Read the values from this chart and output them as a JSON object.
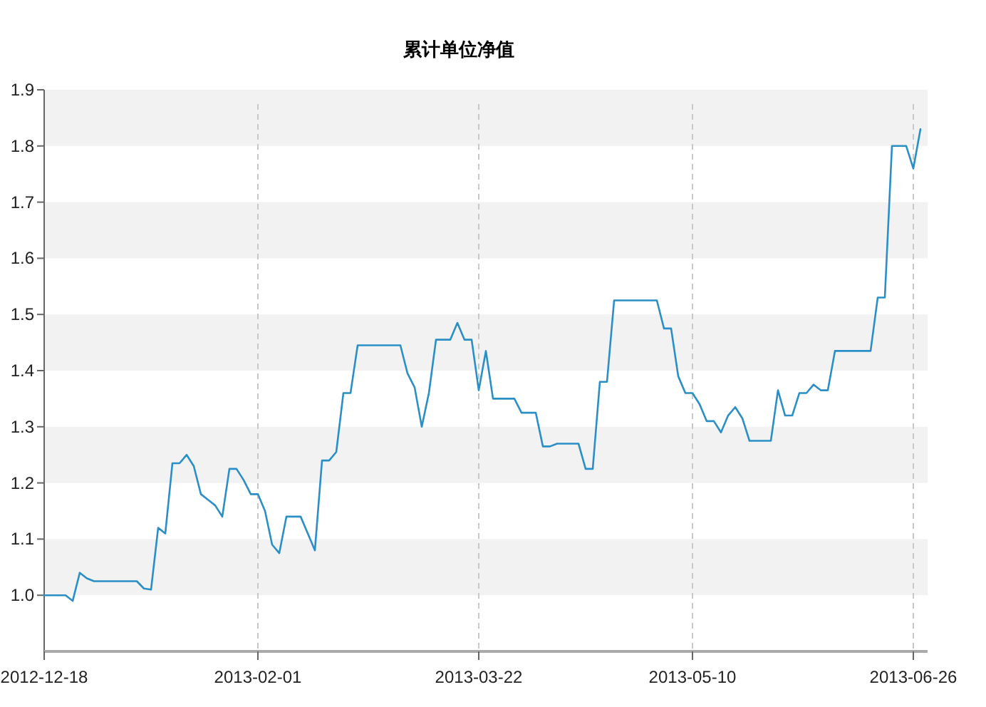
{
  "chart_data": {
    "type": "line",
    "title": "累计单位净值",
    "categories": [
      "2012-12-18",
      null,
      null,
      null,
      null,
      null,
      null,
      null,
      null,
      null,
      null,
      null,
      null,
      null,
      null,
      null,
      null,
      null,
      null,
      null,
      null,
      null,
      null,
      null,
      null,
      null,
      null,
      null,
      null,
      null,
      "2013-02-01",
      null,
      null,
      null,
      null,
      null,
      null,
      null,
      null,
      null,
      null,
      null,
      null,
      null,
      null,
      null,
      null,
      null,
      null,
      null,
      null,
      null,
      null,
      null,
      null,
      null,
      null,
      null,
      null,
      null,
      null,
      "2013-03-22",
      null,
      null,
      null,
      null,
      null,
      null,
      null,
      null,
      null,
      null,
      null,
      null,
      null,
      null,
      null,
      null,
      null,
      null,
      null,
      null,
      null,
      null,
      null,
      null,
      null,
      null,
      null,
      null,
      null,
      "2013-05-10",
      null,
      null,
      null,
      null,
      null,
      null,
      null,
      null,
      null,
      null,
      null,
      null,
      null,
      null,
      null,
      null,
      null,
      null,
      null,
      null,
      null,
      null,
      null,
      null,
      null,
      null,
      null,
      null,
      null,
      null,
      "2013-06-26",
      null
    ],
    "series": [
      {
        "color": "#2b8fc7",
        "values": [
          1.0,
          1.0,
          1.0,
          1.0,
          0.99,
          1.04,
          1.03,
          1.025,
          1.025,
          1.025,
          1.025,
          1.025,
          1.025,
          1.025,
          1.012,
          1.01,
          1.12,
          1.11,
          1.235,
          1.235,
          1.25,
          1.23,
          1.18,
          1.17,
          1.16,
          1.14,
          1.225,
          1.225,
          1.205,
          1.18,
          1.18,
          1.15,
          1.09,
          1.075,
          1.14,
          1.14,
          1.14,
          1.11,
          1.08,
          1.24,
          1.24,
          1.255,
          1.36,
          1.36,
          1.445,
          1.445,
          1.445,
          1.445,
          1.445,
          1.445,
          1.445,
          1.395,
          1.37,
          1.3,
          1.36,
          1.455,
          1.455,
          1.455,
          1.485,
          1.455,
          1.455,
          1.365,
          1.435,
          1.35,
          1.35,
          1.35,
          1.35,
          1.325,
          1.325,
          1.325,
          1.265,
          1.265,
          1.27,
          1.27,
          1.27,
          1.27,
          1.225,
          1.225,
          1.38,
          1.38,
          1.525,
          1.525,
          1.525,
          1.525,
          1.525,
          1.525,
          1.525,
          1.475,
          1.475,
          1.39,
          1.36,
          1.36,
          1.34,
          1.31,
          1.31,
          1.29,
          1.32,
          1.335,
          1.315,
          1.275,
          1.275,
          1.275,
          1.275,
          1.365,
          1.32,
          1.32,
          1.36,
          1.36,
          1.375,
          1.365,
          1.365,
          1.435,
          1.435,
          1.435,
          1.435,
          1.435,
          1.435,
          1.53,
          1.53,
          1.8,
          1.8,
          1.8,
          1.76,
          1.83
        ]
      }
    ],
    "ylim": [
      0.9,
      1.9
    ],
    "yticks": [
      {
        "value": 1,
        "label": "1.0"
      },
      1.1,
      1.2,
      1.3,
      1.4,
      1.5,
      1.6,
      1.7,
      1.8,
      1.9
    ],
    "grid": true
  }
}
